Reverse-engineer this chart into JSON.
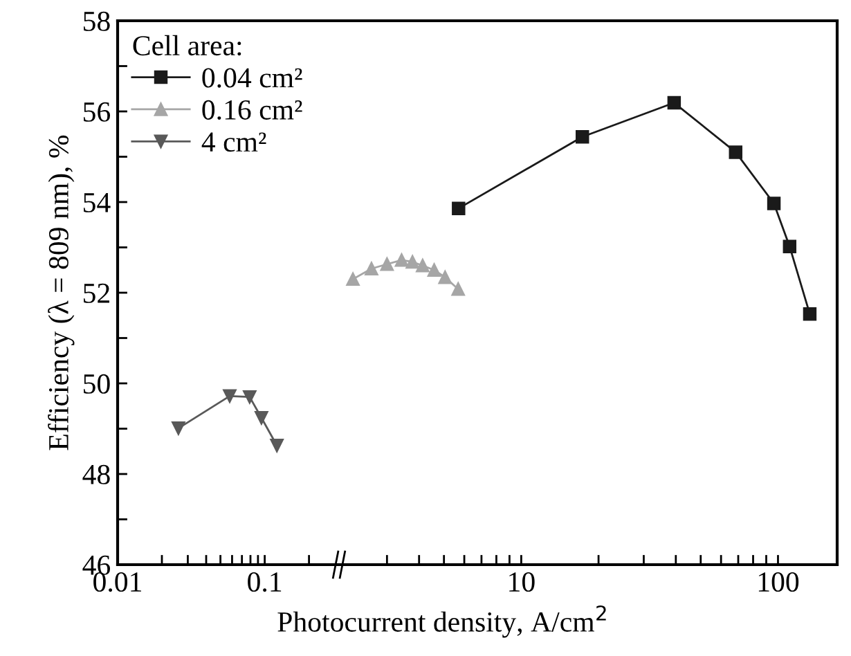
{
  "chart_data": [
    {
      "type": "line",
      "ylabel": "Efficiency (λ = 809 nm), %",
      "log": "x",
      "xlim": [
        0.01,
        0.32
      ],
      "xticks": [
        0.01,
        {
          "value": 0.02,
          "label": null
        },
        {
          "value": 0.03,
          "label": null
        },
        {
          "value": 0.04,
          "label": null
        },
        {
          "value": 0.05,
          "label": null
        },
        {
          "value": 0.06,
          "label": null
        },
        {
          "value": 0.07,
          "label": null
        },
        {
          "value": 0.08,
          "label": null
        },
        {
          "value": 0.09,
          "label": null
        },
        0.1,
        {
          "value": 0.2,
          "label": null
        }
      ],
      "ylim": [
        46,
        58
      ],
      "yticks": [
        46,
        {
          "value": 47,
          "label": null
        },
        48,
        {
          "value": 49,
          "label": null
        },
        50,
        {
          "value": 51,
          "label": null
        },
        52,
        {
          "value": 53,
          "label": null
        },
        54,
        {
          "value": 55,
          "label": null
        },
        56,
        {
          "value": 57,
          "label": null
        },
        58
      ],
      "legend": "top left",
      "legend_title": "Cell area:",
      "grid": false,
      "series": [
        {
          "name": "4 cm²",
          "color": "#595959",
          "marker": "triangle_down",
          "x": [
            0.0259,
            0.0578,
            0.079,
            0.095,
            0.121
          ],
          "values": [
            49.01,
            49.72,
            49.7,
            49.24,
            48.63
          ]
        }
      ]
    },
    {
      "type": "line",
      "xlabel": "Photocurrent density, A/cm$^{2}$",
      "log": "x",
      "xlim": [
        2,
        170
      ],
      "xticks": [
        {
          "value": 3,
          "label": null
        },
        {
          "value": 4,
          "label": null
        },
        {
          "value": 5,
          "label": null
        },
        {
          "value": 6,
          "label": null
        },
        {
          "value": 7,
          "label": null
        },
        {
          "value": 8,
          "label": null
        },
        {
          "value": 9,
          "label": null
        },
        10,
        {
          "value": 20,
          "label": null
        },
        {
          "value": 30,
          "label": null
        },
        {
          "value": 40,
          "label": null
        },
        {
          "value": 50,
          "label": null
        },
        {
          "value": 60,
          "label": null
        },
        {
          "value": 70,
          "label": null
        },
        {
          "value": 80,
          "label": null
        },
        {
          "value": 90,
          "label": null
        },
        100
      ],
      "ylim": [
        46,
        58
      ],
      "tick_labels": "x",
      "grid": false,
      "legend": "left",
      "series": [
        {
          "name": "0.04 cm²",
          "color": "#1a1a1a",
          "marker": "square",
          "x": [
            5.7,
            17.3,
            39.4,
            68.4,
            96.4,
            111,
            133
          ],
          "values": [
            53.86,
            55.44,
            56.19,
            55.1,
            53.97,
            53.02,
            51.53
          ]
        },
        {
          "name": "0.16 cm²",
          "color": "#a6a6a6",
          "marker": "triangle",
          "x": [
            2.21,
            2.61,
            3.0,
            3.42,
            3.77,
            4.13,
            4.58,
            5.05,
            5.68
          ],
          "values": [
            52.3,
            52.53,
            52.63,
            52.72,
            52.68,
            52.6,
            52.5,
            52.34,
            52.08
          ]
        }
      ]
    }
  ]
}
